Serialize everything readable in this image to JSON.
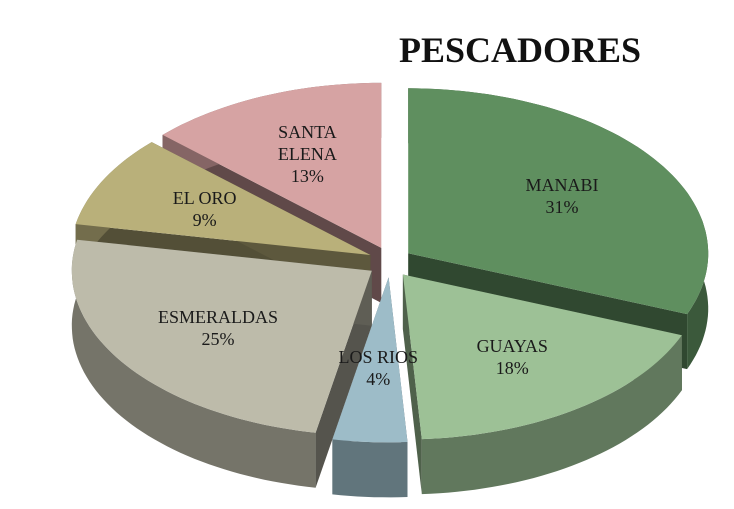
{
  "chart_data": {
    "type": "pie",
    "title": "PESCADORES",
    "categories": [
      "MANABI",
      "GUAYAS",
      "LOS RIOS",
      "ESMERALDAS",
      "EL ORO",
      "SANTA ELENA"
    ],
    "values": [
      31,
      18,
      4,
      25,
      9,
      13
    ],
    "value_labels": [
      "31%",
      "18%",
      "4%",
      "25%",
      "9%",
      "13%"
    ],
    "colors": [
      "#5f8f5f",
      "#9dc196",
      "#9dbcc8",
      "#bdbbaa",
      "#b9b07a",
      "#d6a3a3"
    ]
  }
}
